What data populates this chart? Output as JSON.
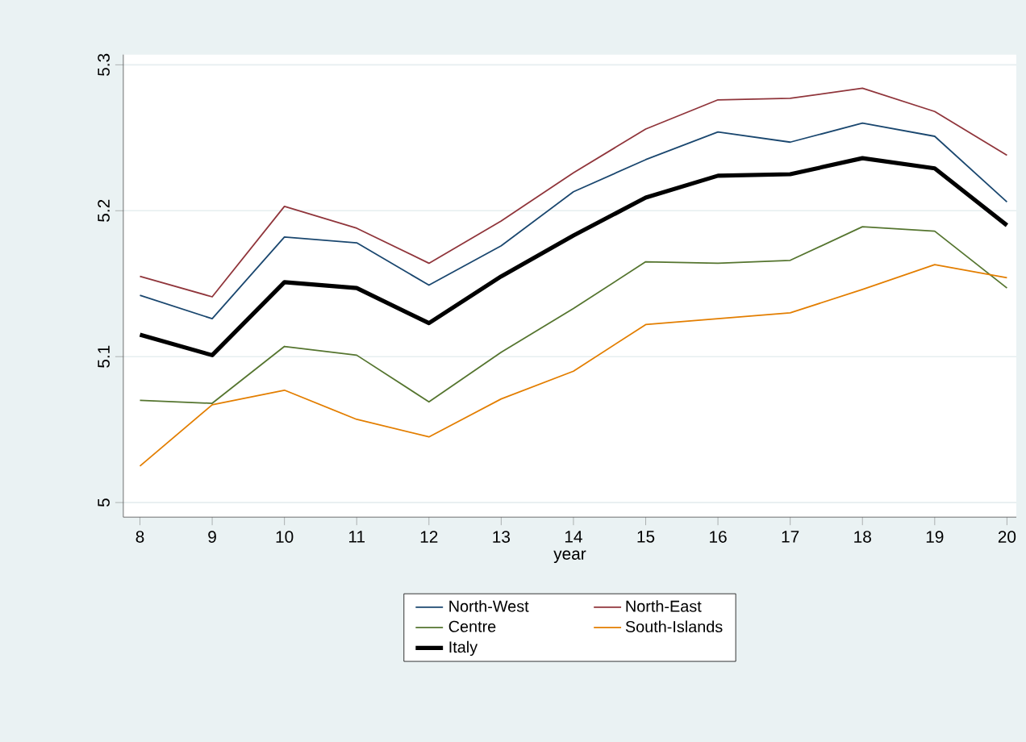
{
  "chart_data": {
    "type": "line",
    "xlabel": "year",
    "x": [
      8,
      9,
      10,
      11,
      12,
      13,
      14,
      15,
      16,
      17,
      18,
      19,
      20
    ],
    "series": [
      {
        "name": "North-West",
        "color": "#1a476f",
        "values": [
          5.142,
          5.126,
          5.182,
          5.178,
          5.149,
          5.176,
          5.213,
          5.235,
          5.254,
          5.247,
          5.26,
          5.251,
          5.206
        ]
      },
      {
        "name": "North-East",
        "color": "#90353b",
        "values": [
          5.155,
          5.141,
          5.203,
          5.188,
          5.164,
          5.193,
          5.226,
          5.256,
          5.276,
          5.277,
          5.284,
          5.268,
          5.238
        ]
      },
      {
        "name": "Centre",
        "color": "#55752f",
        "values": [
          5.07,
          5.068,
          5.107,
          5.101,
          5.069,
          5.103,
          5.133,
          5.165,
          5.164,
          5.166,
          5.189,
          5.186,
          5.147
        ]
      },
      {
        "name": "South-Islands",
        "color": "#e37e00",
        "values": [
          5.025,
          5.067,
          5.077,
          5.057,
          5.045,
          5.071,
          5.09,
          5.122,
          5.126,
          5.13,
          5.146,
          5.163,
          5.154
        ]
      },
      {
        "name": "Italy",
        "color": "#000000",
        "values": [
          5.115,
          5.101,
          5.151,
          5.147,
          5.123,
          5.155,
          5.183,
          5.209,
          5.224,
          5.225,
          5.236,
          5.229,
          5.19
        ]
      }
    ],
    "xlim": [
      7.77,
      20.13
    ],
    "xticks": [
      8,
      9,
      10,
      11,
      12,
      13,
      14,
      15,
      16,
      17,
      18,
      19,
      20
    ],
    "ylim": [
      4.99,
      5.307
    ],
    "yticks": [
      5,
      5.1,
      5.2,
      5.3
    ],
    "grid": "y",
    "legend": "bottom",
    "marker": "none",
    "line_style": "solid"
  }
}
